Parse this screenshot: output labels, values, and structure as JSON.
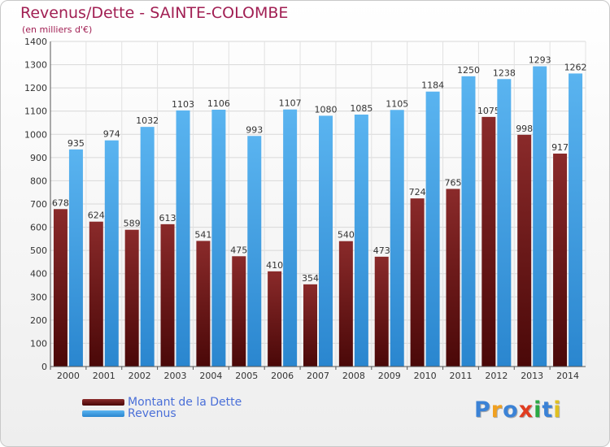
{
  "header": {
    "title": "Revenus/Dette - SAINTE-COLOMBE",
    "subtitle": "(en milliers d'€)"
  },
  "colors": {
    "dette": "#7a1f1f",
    "revenus": "#3b9ee0",
    "title": "#a11f53",
    "legend_text": "#4a6fd8"
  },
  "logo": {
    "text": "Proxiti",
    "letter_colors": [
      "#3b82d6",
      "#f0a020",
      "#3b82d6",
      "#e03c20",
      "#2aa844",
      "#3b82d6",
      "#e0c020"
    ]
  },
  "chart_data": {
    "type": "bar",
    "title": "Revenus/Dette - SAINTE-COLOMBE",
    "subtitle": "(en milliers d'€)",
    "xlabel": "",
    "ylabel": "",
    "ylim": [
      0,
      1400
    ],
    "yticks": [
      0,
      100,
      200,
      300,
      400,
      500,
      600,
      700,
      800,
      900,
      1000,
      1100,
      1200,
      1300,
      1400
    ],
    "grid": true,
    "legend_position": "bottom-left",
    "categories": [
      "2000",
      "2001",
      "2002",
      "2003",
      "2004",
      "2005",
      "2006",
      "2007",
      "2008",
      "2009",
      "2010",
      "2011",
      "2012",
      "2013",
      "2014"
    ],
    "series": [
      {
        "name": "Montant de la Dette",
        "color": "#7a1f1f",
        "values": [
          678,
          624,
          589,
          613,
          541,
          475,
          410,
          354,
          540,
          473,
          724,
          765,
          1075,
          998,
          917
        ],
        "labels": [
          "678",
          "624",
          "589",
          "613",
          "541",
          "475",
          "410",
          "354",
          "540",
          "473",
          "724",
          "765",
          "1075",
          "998",
          "917"
        ]
      },
      {
        "name": "Revenus",
        "color": "#3b9ee0",
        "values": [
          935,
          974,
          1032,
          1103,
          1106,
          993,
          1107,
          1080,
          1085,
          1105,
          1184,
          1250,
          1238,
          1293,
          1262
        ],
        "labels": [
          "935",
          "974",
          "1032",
          "1103",
          "1106",
          "993",
          "1107",
          "1080",
          "1085",
          "1105",
          "1184",
          "1250",
          "1238",
          "1293",
          "1262"
        ]
      }
    ]
  }
}
